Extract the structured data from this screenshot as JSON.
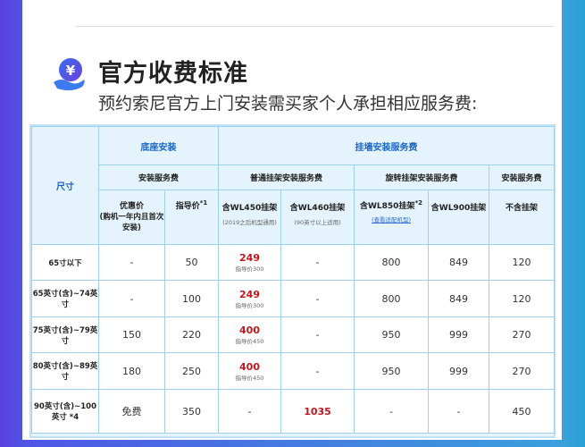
{
  "header": {
    "title": "官方收费标准",
    "subtitle": "预约索尼官方上门安装需买家个人承担相应服务费:"
  },
  "colors": {
    "accent": "#1a66c9",
    "price_red": "#c4161c",
    "border": "#9fd1ef"
  },
  "icon": "yen-hand-icon",
  "table": {
    "size_header": "尺寸",
    "group_base": "底座安装",
    "group_wall": "挂墙安装服务费",
    "sub_base": "安装服务费",
    "sub_normal": "普通挂架安装服务费",
    "sub_rotate": "旋转挂架安装服务费",
    "sub_none": "安装服务费",
    "col_discount": "优惠价",
    "col_discount_note": "(购机一年内且首次安装)",
    "col_guide": "指导价",
    "col_guide_sup": "*1",
    "col_wl450": "含WL450挂架",
    "col_wl450_note": "(2019之后机型通用)",
    "col_wl460": "含WL460挂架",
    "col_wl460_note": "(90英寸以上适用)",
    "col_wl850": "含WL850挂架",
    "col_wl850_sup": "*2",
    "col_wl850_link": "(查看适配机型)",
    "col_wl900": "含WL900挂架",
    "col_none": "不含挂架",
    "rows": [
      {
        "size": "65寸以下",
        "discount": "-",
        "guide": "50",
        "wl450": "249",
        "wl450_guide": "指导价300",
        "wl460": "-",
        "wl850": "800",
        "wl900": "849",
        "none": "120"
      },
      {
        "size": "65英寸(含)~74英寸",
        "discount": "-",
        "guide": "100",
        "wl450": "249",
        "wl450_guide": "指导价300",
        "wl460": "-",
        "wl850": "800",
        "wl900": "849",
        "none": "120"
      },
      {
        "size": "75英寸(含)~79英寸",
        "discount": "150",
        "guide": "220",
        "wl450": "400",
        "wl450_guide": "指导价450",
        "wl460": "-",
        "wl850": "950",
        "wl900": "999",
        "none": "270"
      },
      {
        "size": "80英寸(含)~89英寸",
        "discount": "180",
        "guide": "250",
        "wl450": "400",
        "wl450_guide": "指导价450",
        "wl460": "-",
        "wl850": "950",
        "wl900": "999",
        "none": "270"
      },
      {
        "size": "90英寸(含)~100英寸 *4",
        "discount": "免费",
        "guide": "350",
        "wl450": "-",
        "wl450_guide": "",
        "wl460": "1035",
        "wl850": "-",
        "wl900": "-",
        "none": "450"
      }
    ]
  }
}
